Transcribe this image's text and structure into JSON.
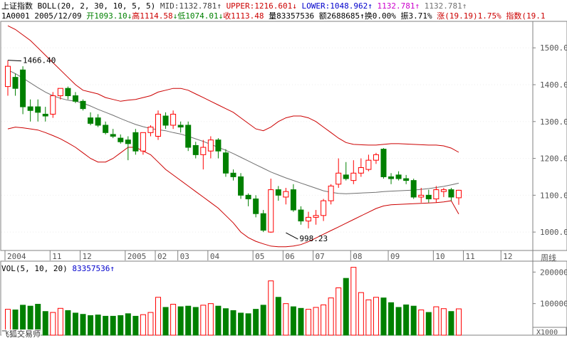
{
  "header": {
    "index_name": "上证指数",
    "indicator": "BOLL(20, 2, 30, 10, 5, 5)",
    "mid": "MID:1132.781",
    "upper": "UPPER:1216.601",
    "lower": "LOWER:1048.962",
    "ind4": "1132.781",
    "ind5": "1132.781",
    "code": "1A0001",
    "date": "2005/12/09",
    "open": "开1093.10",
    "high": "高1114.58",
    "low": "低1074.01",
    "close": "收1113.48",
    "volume": "量83357536",
    "amount": "额2688685",
    "turnover": "换0.00%",
    "amplitude": "振3.71%",
    "change": "涨(19.19)1.75%",
    "ref": "指数(19.1"
  },
  "vol_header": {
    "label": "VOL(5, 10, 20)",
    "value": "83357536"
  },
  "watermark": "飞狐交易师",
  "colors": {
    "up": "#ff0000",
    "down": "#008000",
    "upper": "#cc0000",
    "mid": "#707070",
    "axis": "#808080",
    "text_blue": "#0000cc",
    "text_purple": "#cc00cc"
  },
  "chart_data": [
    {
      "type": "candlestick",
      "title": "上证指数 周线",
      "period_label": "周线",
      "indicator": "BOLL(20, 2, 30, 10, 5, 5)",
      "ylim": [
        950,
        1570
      ],
      "y_ticks": [
        1000,
        1100,
        1200,
        1300,
        1400,
        1500
      ],
      "y_tick_labels": [
        "1000.00",
        "1100.00",
        "1200.00",
        "1300.00",
        "1400.00",
        "1500.00"
      ],
      "x_tick_labels": [
        "2004",
        "11",
        "12",
        "2005",
        "02",
        "03",
        "04",
        "05",
        "06",
        "07",
        "08",
        "09",
        "10",
        "11",
        "12"
      ],
      "x_tick_index": [
        0,
        6,
        10,
        16,
        20,
        23,
        27,
        33,
        37,
        41,
        46,
        51,
        57,
        61,
        66
      ],
      "annotations": [
        {
          "text": "1466.40",
          "index": 0,
          "value": 1466.4
        },
        {
          "text": "998.23",
          "index": 37,
          "value": 998.23
        }
      ],
      "candles": [
        {
          "o": 1395,
          "h": 1466,
          "l": 1370,
          "c": 1450
        },
        {
          "o": 1420,
          "h": 1430,
          "l": 1370,
          "c": 1390
        },
        {
          "o": 1440,
          "h": 1450,
          "l": 1320,
          "c": 1340
        },
        {
          "o": 1340,
          "h": 1360,
          "l": 1300,
          "c": 1330
        },
        {
          "o": 1340,
          "h": 1360,
          "l": 1300,
          "c": 1325
        },
        {
          "o": 1320,
          "h": 1340,
          "l": 1300,
          "c": 1315
        },
        {
          "o": 1320,
          "h": 1380,
          "l": 1310,
          "c": 1370
        },
        {
          "o": 1370,
          "h": 1390,
          "l": 1360,
          "c": 1390
        },
        {
          "o": 1390,
          "h": 1395,
          "l": 1360,
          "c": 1370
        },
        {
          "o": 1370,
          "h": 1380,
          "l": 1350,
          "c": 1355
        },
        {
          "o": 1355,
          "h": 1360,
          "l": 1330,
          "c": 1335
        },
        {
          "o": 1310,
          "h": 1325,
          "l": 1290,
          "c": 1295
        },
        {
          "o": 1310,
          "h": 1320,
          "l": 1285,
          "c": 1290
        },
        {
          "o": 1290,
          "h": 1300,
          "l": 1265,
          "c": 1270
        },
        {
          "o": 1265,
          "h": 1280,
          "l": 1255,
          "c": 1260
        },
        {
          "o": 1255,
          "h": 1265,
          "l": 1240,
          "c": 1245
        },
        {
          "o": 1250,
          "h": 1260,
          "l": 1195,
          "c": 1240
        },
        {
          "o": 1270,
          "h": 1280,
          "l": 1210,
          "c": 1220
        },
        {
          "o": 1220,
          "h": 1270,
          "l": 1210,
          "c": 1270
        },
        {
          "o": 1270,
          "h": 1290,
          "l": 1260,
          "c": 1285
        },
        {
          "o": 1260,
          "h": 1330,
          "l": 1250,
          "c": 1320
        },
        {
          "o": 1315,
          "h": 1325,
          "l": 1280,
          "c": 1290
        },
        {
          "o": 1290,
          "h": 1330,
          "l": 1280,
          "c": 1320
        },
        {
          "o": 1290,
          "h": 1300,
          "l": 1270,
          "c": 1285
        },
        {
          "o": 1290,
          "h": 1300,
          "l": 1220,
          "c": 1230
        },
        {
          "o": 1235,
          "h": 1245,
          "l": 1200,
          "c": 1210
        },
        {
          "o": 1210,
          "h": 1250,
          "l": 1170,
          "c": 1230
        },
        {
          "o": 1220,
          "h": 1260,
          "l": 1200,
          "c": 1250
        },
        {
          "o": 1250,
          "h": 1255,
          "l": 1200,
          "c": 1220
        },
        {
          "o": 1215,
          "h": 1225,
          "l": 1150,
          "c": 1160
        },
        {
          "o": 1160,
          "h": 1170,
          "l": 1140,
          "c": 1150
        },
        {
          "o": 1150,
          "h": 1160,
          "l": 1090,
          "c": 1100
        },
        {
          "o": 1100,
          "h": 1105,
          "l": 1070,
          "c": 1090
        },
        {
          "o": 1090,
          "h": 1100,
          "l": 1040,
          "c": 1050
        },
        {
          "o": 1050,
          "h": 1060,
          "l": 1000,
          "c": 1005
        },
        {
          "o": 1000,
          "h": 1145,
          "l": 998,
          "c": 1115
        },
        {
          "o": 1115,
          "h": 1125,
          "l": 1085,
          "c": 1100
        },
        {
          "o": 1095,
          "h": 1120,
          "l": 1075,
          "c": 1110
        },
        {
          "o": 1115,
          "h": 1130,
          "l": 1055,
          "c": 1060
        },
        {
          "o": 1060,
          "h": 1070,
          "l": 1020,
          "c": 1030
        },
        {
          "o": 1030,
          "h": 1055,
          "l": 1010,
          "c": 1040
        },
        {
          "o": 1040,
          "h": 1060,
          "l": 1020,
          "c": 1045
        },
        {
          "o": 1045,
          "h": 1090,
          "l": 1030,
          "c": 1085
        },
        {
          "o": 1085,
          "h": 1130,
          "l": 1075,
          "c": 1125
        },
        {
          "o": 1130,
          "h": 1200,
          "l": 1120,
          "c": 1160
        },
        {
          "o": 1155,
          "h": 1190,
          "l": 1140,
          "c": 1145
        },
        {
          "o": 1140,
          "h": 1195,
          "l": 1130,
          "c": 1160
        },
        {
          "o": 1160,
          "h": 1200,
          "l": 1150,
          "c": 1175
        },
        {
          "o": 1170,
          "h": 1210,
          "l": 1165,
          "c": 1195
        },
        {
          "o": 1195,
          "h": 1215,
          "l": 1185,
          "c": 1210
        },
        {
          "o": 1225,
          "h": 1228,
          "l": 1145,
          "c": 1150
        },
        {
          "o": 1150,
          "h": 1160,
          "l": 1130,
          "c": 1145
        },
        {
          "o": 1155,
          "h": 1165,
          "l": 1140,
          "c": 1145
        },
        {
          "o": 1145,
          "h": 1155,
          "l": 1130,
          "c": 1140
        },
        {
          "o": 1140,
          "h": 1145,
          "l": 1090,
          "c": 1095
        },
        {
          "o": 1095,
          "h": 1120,
          "l": 1080,
          "c": 1100
        },
        {
          "o": 1100,
          "h": 1115,
          "l": 1080,
          "c": 1090
        },
        {
          "o": 1090,
          "h": 1125,
          "l": 1080,
          "c": 1115
        },
        {
          "o": 1110,
          "h": 1120,
          "l": 1095,
          "c": 1115
        },
        {
          "o": 1115,
          "h": 1120,
          "l": 1085,
          "c": 1095
        },
        {
          "o": 1093.1,
          "h": 1114.58,
          "l": 1074.01,
          "c": 1113.48
        }
      ],
      "boll_upper": [
        1560,
        1550,
        1535,
        1520,
        1500,
        1480,
        1460,
        1440,
        1420,
        1400,
        1385,
        1380,
        1375,
        1365,
        1360,
        1355,
        1358,
        1360,
        1365,
        1370,
        1380,
        1385,
        1390,
        1390,
        1385,
        1375,
        1365,
        1355,
        1345,
        1335,
        1325,
        1310,
        1295,
        1280,
        1275,
        1285,
        1300,
        1310,
        1315,
        1315,
        1310,
        1300,
        1285,
        1270,
        1255,
        1243,
        1238,
        1237,
        1236,
        1236,
        1238,
        1240,
        1240,
        1239,
        1238,
        1237,
        1236,
        1236,
        1234,
        1228,
        1216.6
      ],
      "boll_mid": [
        1440,
        1430,
        1418,
        1405,
        1392,
        1380,
        1370,
        1363,
        1358,
        1355,
        1350,
        1342,
        1333,
        1325,
        1317,
        1308,
        1300,
        1292,
        1286,
        1281,
        1278,
        1275,
        1270,
        1266,
        1260,
        1253,
        1246,
        1238,
        1230,
        1222,
        1213,
        1203,
        1193,
        1183,
        1173,
        1163,
        1155,
        1147,
        1140,
        1133,
        1126,
        1119,
        1112,
        1108,
        1105,
        1104,
        1105,
        1106,
        1107,
        1108,
        1110,
        1111,
        1112,
        1113,
        1114,
        1116,
        1118,
        1121,
        1124,
        1128,
        1132.8
      ],
      "boll_lower": [
        1280,
        1285,
        1283,
        1280,
        1277,
        1270,
        1262,
        1253,
        1242,
        1230,
        1215,
        1200,
        1190,
        1190,
        1200,
        1215,
        1230,
        1230,
        1220,
        1210,
        1190,
        1170,
        1155,
        1140,
        1125,
        1110,
        1095,
        1080,
        1065,
        1045,
        1025,
        1000,
        985,
        975,
        968,
        962,
        960,
        960,
        962,
        966,
        974,
        984,
        994,
        1004,
        1014,
        1024,
        1034,
        1044,
        1054,
        1064,
        1071,
        1074,
        1075,
        1076,
        1077,
        1078,
        1079,
        1080,
        1082,
        1085,
        1049
      ]
    },
    {
      "type": "bar",
      "title": "VOL(5, 10, 20)",
      "ylim": [
        0,
        230000
      ],
      "y_ticks": [
        100000,
        200000
      ],
      "y_tick_labels": [
        "100000",
        "200000"
      ],
      "unit_label": "X1000",
      "values": [
        82000,
        80000,
        95000,
        92000,
        98000,
        75000,
        72000,
        85000,
        78000,
        70000,
        66000,
        62000,
        64000,
        60000,
        60000,
        62000,
        68000,
        60000,
        65000,
        72000,
        120000,
        88000,
        98000,
        90000,
        92000,
        88000,
        95000,
        100000,
        92000,
        84000,
        78000,
        70000,
        68000,
        82000,
        95000,
        172000,
        120000,
        100000,
        90000,
        85000,
        82000,
        88000,
        96000,
        118000,
        150000,
        180000,
        215000,
        135000,
        112000,
        120000,
        118000,
        103000,
        88000,
        96000,
        92000,
        80000,
        72000,
        90000,
        84000,
        75000,
        83357
      ]
    }
  ]
}
